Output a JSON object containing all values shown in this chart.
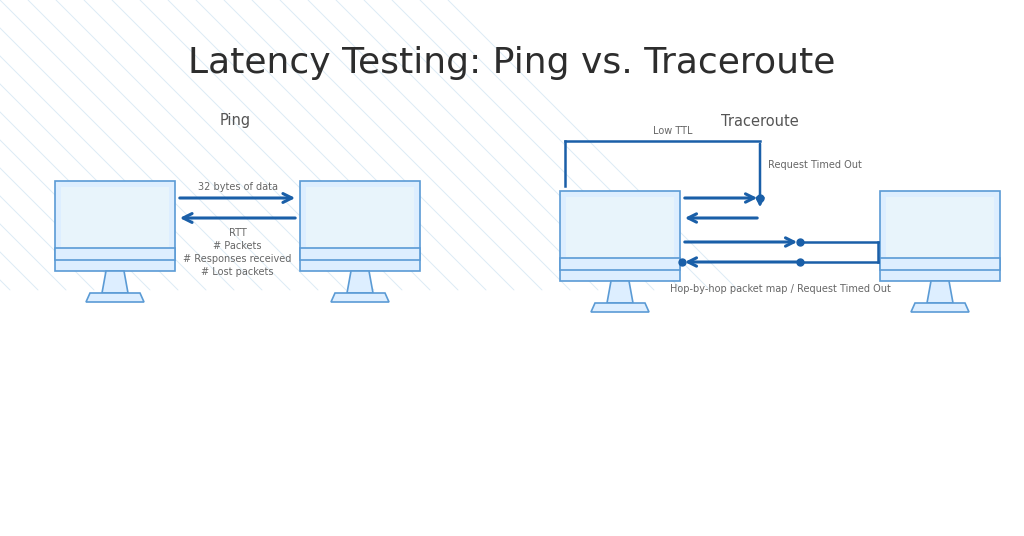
{
  "title": "Latency Testing: Ping vs. Traceroute",
  "title_fontsize": 26,
  "title_color": "#2d2d2d",
  "background_color": "#ffffff",
  "monitor_fill": "#ddeeff",
  "monitor_screen_fill": "#e8f4fb",
  "monitor_edge": "#5b9bd5",
  "arrow_color": "#1a5fa8",
  "text_color": "#666666",
  "label_color": "#555555",
  "ping_label": "Ping",
  "traceroute_label": "Traceroute",
  "ping_top_label": "32 bytes of data",
  "ping_bottom_labels": [
    "RTT",
    "# Packets",
    "# Responses received",
    "# Lost packets"
  ],
  "traceroute_low_ttl": "Low TTL",
  "traceroute_timeout": "Request Timed Out",
  "traceroute_bottom": "Hop-by-hop packet map / Request Timed Out",
  "diagonal_line_color": "#c5ddf0",
  "diagonal_alpha": 0.6
}
